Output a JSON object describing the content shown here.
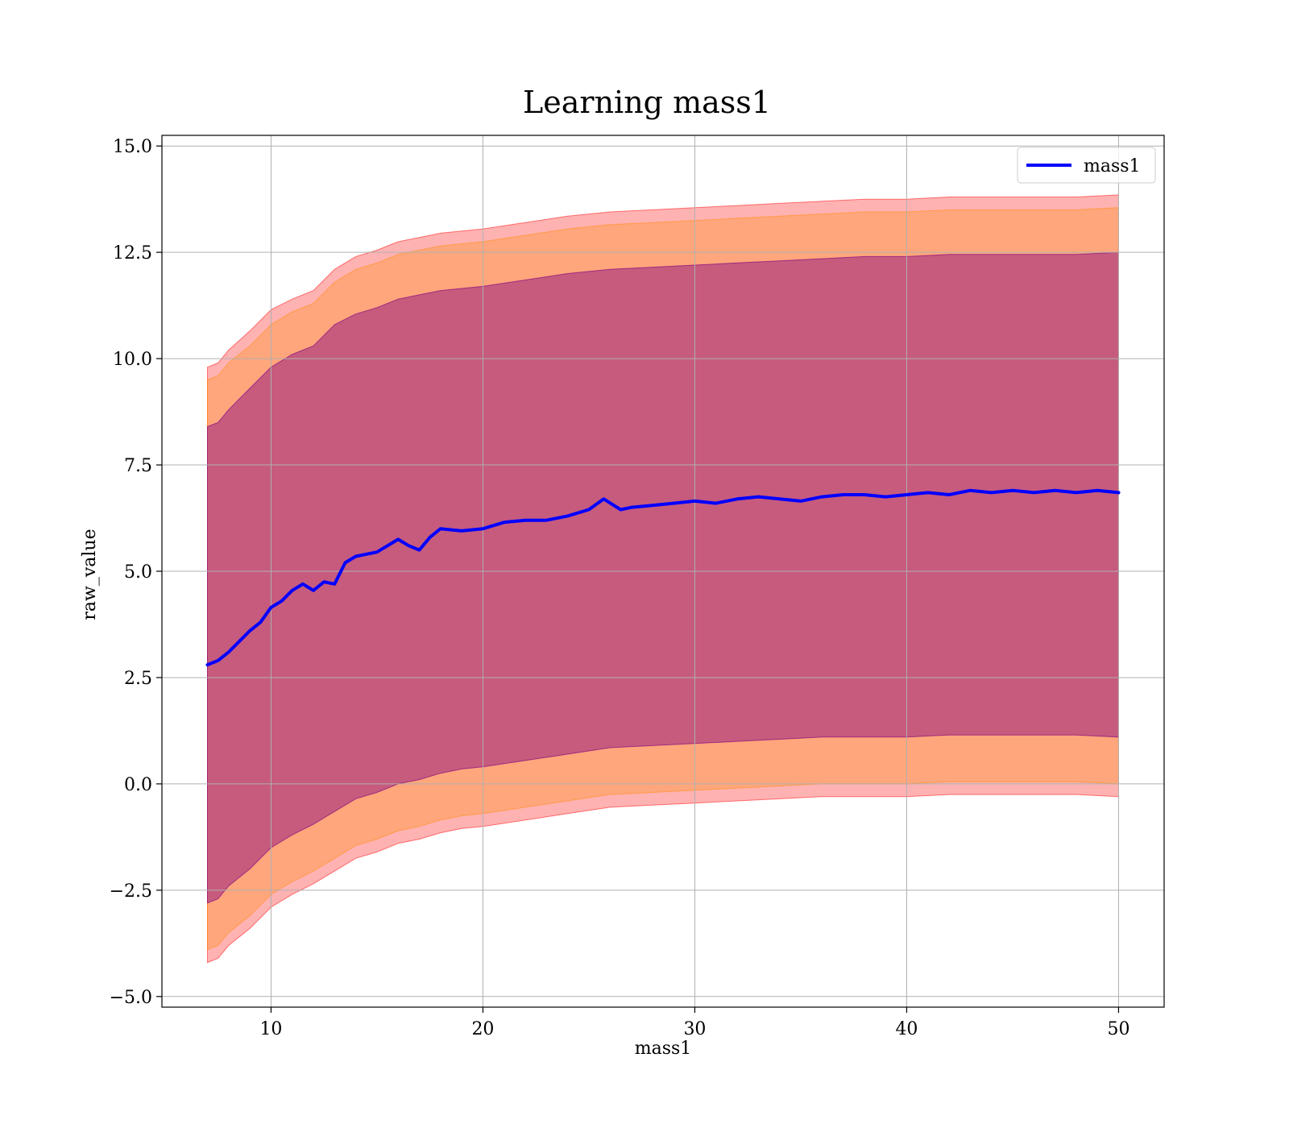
{
  "chart_data": {
    "type": "line",
    "title": "Learning mass1",
    "xlabel": "mass1",
    "ylabel": "raw_value",
    "xlim": [
      4.85,
      52.15
    ],
    "ylim": [
      -5.25,
      15.25
    ],
    "x_ticks": [
      10,
      20,
      30,
      40,
      50
    ],
    "x_tick_labels": [
      "10",
      "20",
      "30",
      "40",
      "50"
    ],
    "y_ticks": [
      -5.0,
      -2.5,
      0.0,
      2.5,
      5.0,
      7.5,
      10.0,
      12.5,
      15.0
    ],
    "y_tick_labels": [
      "−5.0",
      "−2.5",
      "0.0",
      "2.5",
      "5.0",
      "7.5",
      "10.0",
      "12.5",
      "15.0"
    ],
    "grid": true,
    "legend": {
      "position": "top-right",
      "entries": [
        "mass1"
      ]
    },
    "series": [
      {
        "name": "mass1",
        "color": "#0000ff",
        "x": [
          7.0,
          7.5,
          8.0,
          8.5,
          9.0,
          9.5,
          10.0,
          10.5,
          11.0,
          11.5,
          12.0,
          12.5,
          13.0,
          13.5,
          14.0,
          15.0,
          16.0,
          16.5,
          17.0,
          17.5,
          18.0,
          19.0,
          20.0,
          21.0,
          22.0,
          23.0,
          24.0,
          25.0,
          25.7,
          26.5,
          27.0,
          28.0,
          29.0,
          30.0,
          31.0,
          32.0,
          33.0,
          34.0,
          35.0,
          36.0,
          37.0,
          38.0,
          39.0,
          40.0,
          41.0,
          42.0,
          43.0,
          44.0,
          45.0,
          46.0,
          47.0,
          48.0,
          49.0,
          50.0
        ],
        "values": [
          2.8,
          2.9,
          3.1,
          3.35,
          3.6,
          3.8,
          4.15,
          4.3,
          4.55,
          4.7,
          4.55,
          4.75,
          4.7,
          5.2,
          5.35,
          5.45,
          5.75,
          5.6,
          5.5,
          5.8,
          6.0,
          5.95,
          6.0,
          6.15,
          6.2,
          6.2,
          6.3,
          6.45,
          6.7,
          6.45,
          6.5,
          6.55,
          6.6,
          6.65,
          6.6,
          6.7,
          6.75,
          6.7,
          6.65,
          6.75,
          6.8,
          6.8,
          6.75,
          6.8,
          6.85,
          6.8,
          6.9,
          6.85,
          6.9,
          6.85,
          6.9,
          6.85,
          6.9,
          6.85
        ]
      }
    ],
    "bands": [
      {
        "label": "outer",
        "color": "#ff0000",
        "opacity": 0.3,
        "x": [
          7.0,
          7.5,
          8.0,
          9.0,
          10.0,
          11.0,
          12.0,
          13.0,
          14.0,
          15.0,
          16.0,
          17.0,
          18.0,
          19.0,
          20.0,
          22.0,
          24.0,
          26.0,
          28.0,
          30.0,
          32.0,
          34.0,
          36.0,
          38.0,
          40.0,
          42.0,
          44.0,
          46.0,
          48.0,
          50.0
        ],
        "upper": [
          9.8,
          9.9,
          10.2,
          10.65,
          11.15,
          11.4,
          11.6,
          12.1,
          12.4,
          12.55,
          12.75,
          12.85,
          12.95,
          13.0,
          13.05,
          13.2,
          13.35,
          13.45,
          13.5,
          13.55,
          13.6,
          13.65,
          13.7,
          13.75,
          13.75,
          13.8,
          13.8,
          13.8,
          13.8,
          13.85
        ],
        "lower": [
          -4.2,
          -4.1,
          -3.8,
          -3.4,
          -2.9,
          -2.6,
          -2.35,
          -2.05,
          -1.75,
          -1.6,
          -1.4,
          -1.3,
          -1.15,
          -1.05,
          -1.0,
          -0.85,
          -0.7,
          -0.55,
          -0.5,
          -0.45,
          -0.4,
          -0.35,
          -0.3,
          -0.3,
          -0.3,
          -0.25,
          -0.25,
          -0.25,
          -0.25,
          -0.3
        ]
      },
      {
        "label": "middle",
        "color": "#ff8c00",
        "opacity": 0.3,
        "x": [
          7.0,
          7.5,
          8.0,
          9.0,
          10.0,
          11.0,
          12.0,
          13.0,
          14.0,
          15.0,
          16.0,
          17.0,
          18.0,
          19.0,
          20.0,
          22.0,
          24.0,
          26.0,
          28.0,
          30.0,
          32.0,
          34.0,
          36.0,
          38.0,
          40.0,
          42.0,
          44.0,
          46.0,
          48.0,
          50.0
        ],
        "upper": [
          9.5,
          9.6,
          9.9,
          10.3,
          10.8,
          11.1,
          11.3,
          11.8,
          12.1,
          12.25,
          12.45,
          12.55,
          12.65,
          12.7,
          12.75,
          12.9,
          13.05,
          13.15,
          13.2,
          13.25,
          13.3,
          13.35,
          13.4,
          13.45,
          13.45,
          13.5,
          13.5,
          13.5,
          13.5,
          13.55
        ],
        "lower": [
          -3.9,
          -3.8,
          -3.5,
          -3.1,
          -2.6,
          -2.3,
          -2.05,
          -1.75,
          -1.45,
          -1.3,
          -1.1,
          -1.0,
          -0.85,
          -0.75,
          -0.7,
          -0.55,
          -0.4,
          -0.25,
          -0.2,
          -0.15,
          -0.1,
          -0.05,
          0.0,
          0.0,
          0.0,
          0.05,
          0.05,
          0.05,
          0.05,
          0.0
        ]
      },
      {
        "label": "inner",
        "color": "#800080",
        "opacity": 0.45,
        "x": [
          7.0,
          7.5,
          8.0,
          9.0,
          10.0,
          11.0,
          12.0,
          13.0,
          14.0,
          15.0,
          16.0,
          17.0,
          18.0,
          19.0,
          20.0,
          22.0,
          24.0,
          26.0,
          28.0,
          30.0,
          32.0,
          34.0,
          36.0,
          38.0,
          40.0,
          42.0,
          44.0,
          46.0,
          48.0,
          50.0
        ],
        "upper": [
          8.4,
          8.5,
          8.8,
          9.3,
          9.8,
          10.1,
          10.3,
          10.8,
          11.05,
          11.2,
          11.4,
          11.5,
          11.6,
          11.65,
          11.7,
          11.85,
          12.0,
          12.1,
          12.15,
          12.2,
          12.25,
          12.3,
          12.35,
          12.4,
          12.4,
          12.45,
          12.45,
          12.45,
          12.45,
          12.5
        ],
        "lower": [
          -2.8,
          -2.7,
          -2.4,
          -2.0,
          -1.5,
          -1.2,
          -0.95,
          -0.65,
          -0.35,
          -0.2,
          0.0,
          0.1,
          0.25,
          0.35,
          0.4,
          0.55,
          0.7,
          0.85,
          0.9,
          0.95,
          1.0,
          1.05,
          1.1,
          1.1,
          1.1,
          1.15,
          1.15,
          1.15,
          1.15,
          1.1
        ]
      }
    ]
  }
}
